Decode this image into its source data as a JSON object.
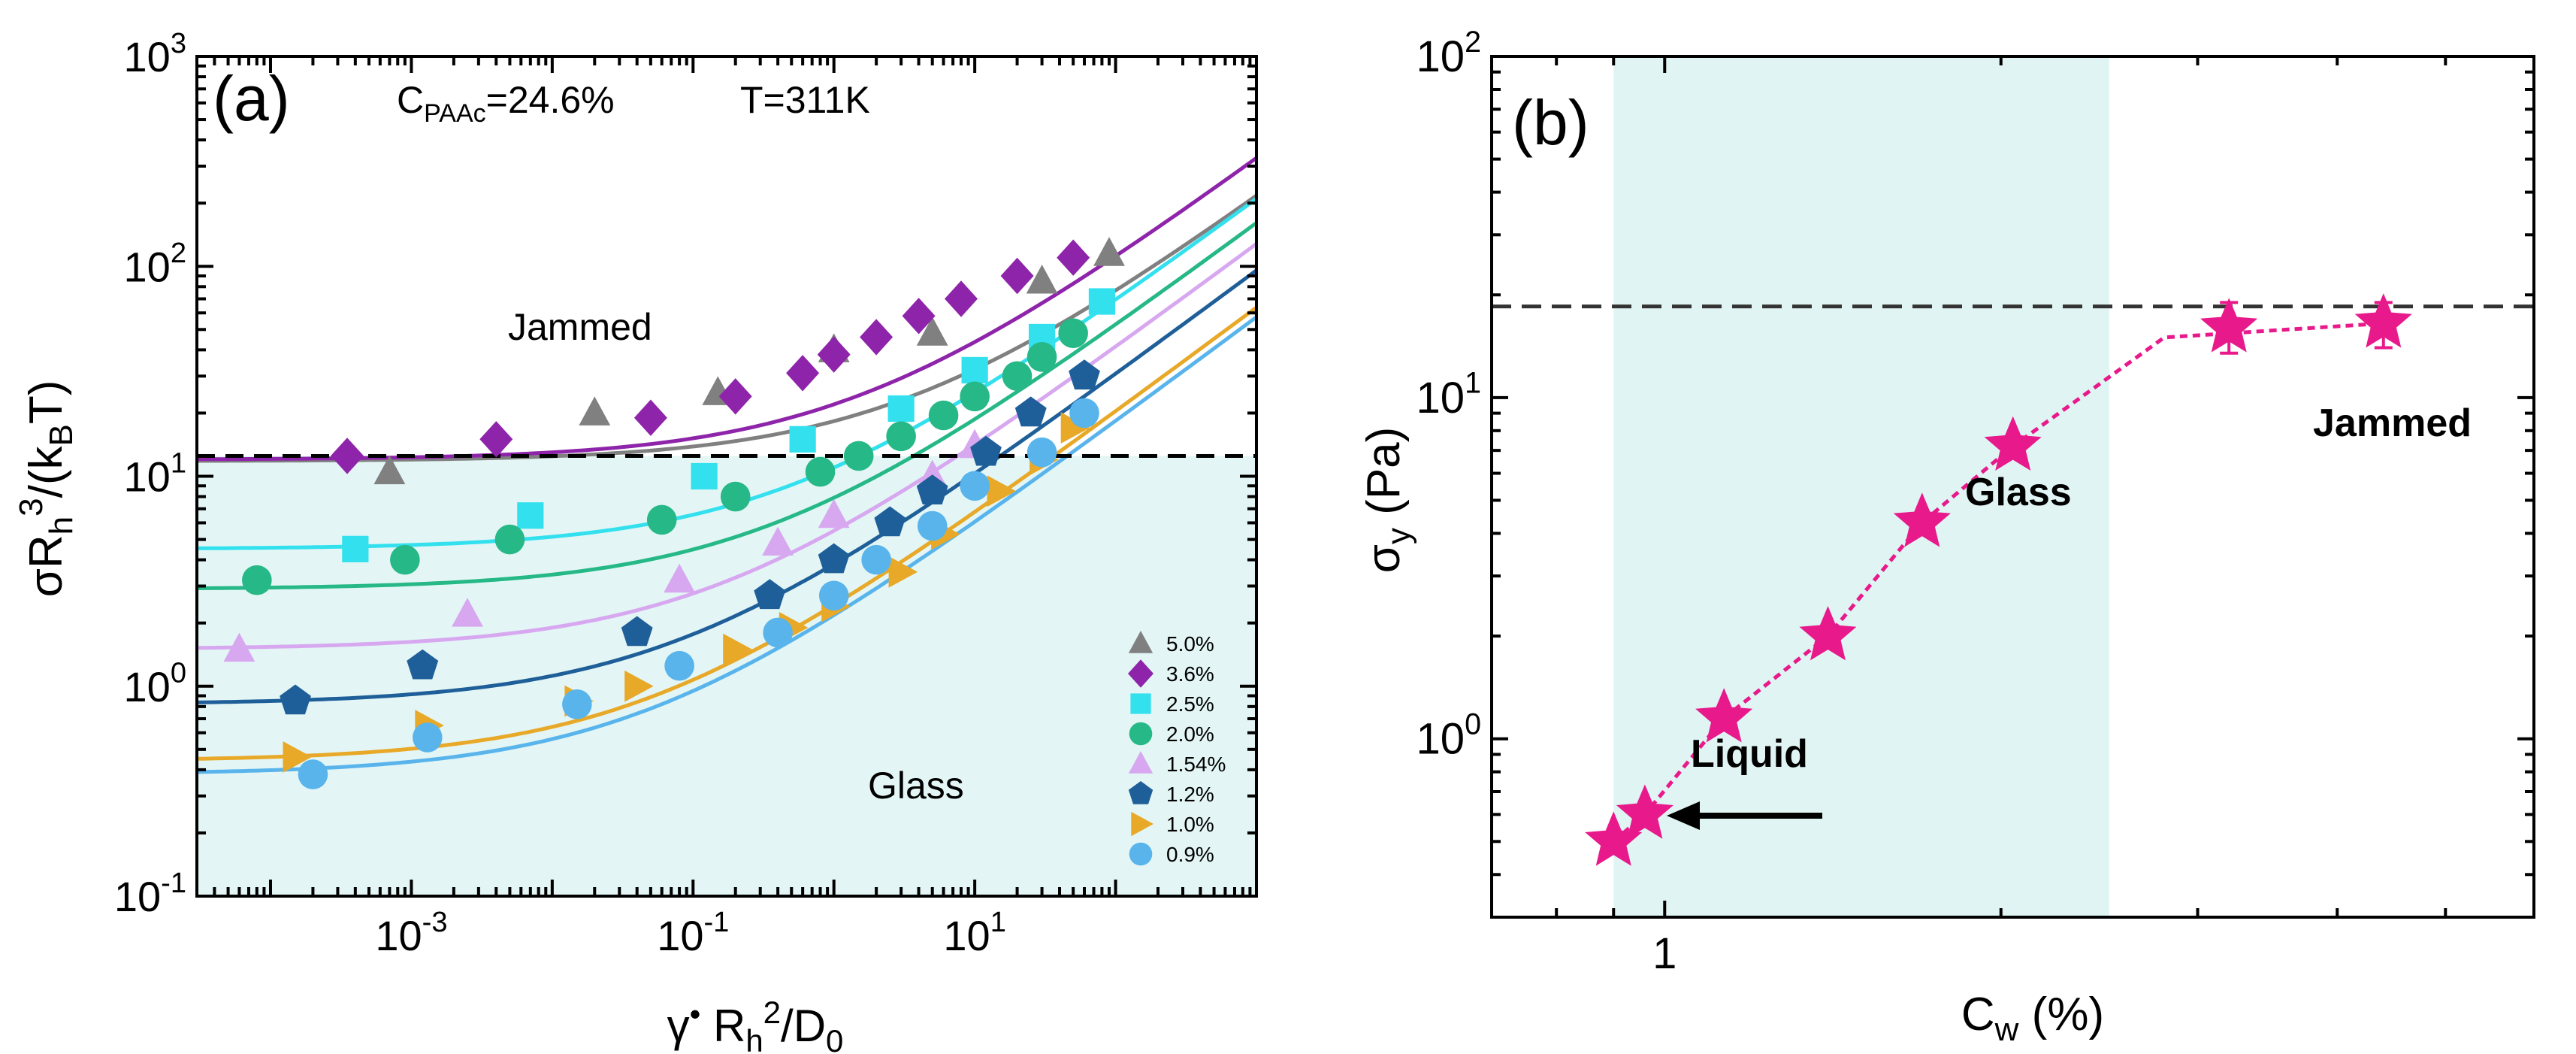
{
  "chart_data": [
    {
      "panel": "(a)",
      "type": "scatter",
      "title": "",
      "annotation_conc": "C",
      "annotation_conc_sub": "PAAc",
      "annotation_conc_val": "=24.6%",
      "annotation_temp": "T=311K",
      "region_labels": {
        "upper": "Jammed",
        "lower": "Glass"
      },
      "xlabel": {
        "base": "γ",
        "sup1": "•",
        "mid": " R",
        "sub1": "h",
        "sup2": "2",
        "tail": "/D",
        "sub2": "0"
      },
      "ylabel": {
        "base": "σR",
        "sub": "h",
        "sup": "3",
        "tail1": "/(k",
        "sub2": "B",
        "tail2": "T)"
      },
      "xscale": "log",
      "yscale": "log",
      "xlim": [
        3e-05,
        1000
      ],
      "ylim": [
        0.1,
        1000
      ],
      "x_ticks": [
        {
          "v": 0.001,
          "b": "10",
          "e": "-3"
        },
        {
          "v": 0.1,
          "b": "10",
          "e": "-1"
        },
        {
          "v": 10,
          "b": "10",
          "e": "1"
        }
      ],
      "y_ticks": [
        {
          "v": 0.1,
          "b": "10",
          "e": "-1"
        },
        {
          "v": 1,
          "b": "10",
          "e": "0"
        },
        {
          "v": 10,
          "b": "10",
          "e": "1"
        },
        {
          "v": 100,
          "b": "10",
          "e": "2"
        },
        {
          "v": 1000,
          "b": "10",
          "e": "3"
        }
      ],
      "glass_boundary_y": 12.5,
      "glass_region_color": "#e3f6f5",
      "legend_placement": "bottom-right",
      "series": [
        {
          "name": "5.0%",
          "marker": "triangle",
          "color": "#808080",
          "points": [
            [
              0.0007,
              10.5
            ],
            [
              0.02,
              20
            ],
            [
              0.15,
              25
            ],
            [
              1.0,
              40
            ],
            [
              5,
              48
            ],
            [
              30,
              85
            ],
            [
              90,
              115
            ]
          ],
          "fit": {
            "sigma0": 11.8,
            "a": 6.5,
            "n": 0.5
          }
        },
        {
          "name": "3.6%",
          "marker": "diamond",
          "color": "#8e24aa",
          "points": [
            [
              0.00035,
              12.5
            ],
            [
              0.004,
              15
            ],
            [
              0.05,
              19
            ],
            [
              0.2,
              24
            ],
            [
              0.6,
              31
            ],
            [
              1.0,
              38
            ],
            [
              2.0,
              46
            ],
            [
              4,
              58
            ],
            [
              8,
              70
            ],
            [
              20,
              90
            ],
            [
              50,
              110
            ]
          ],
          "fit": {
            "sigma0": 12,
            "a": 10,
            "n": 0.5
          }
        },
        {
          "name": "2.5%",
          "marker": "square",
          "color": "#33e0ee",
          "points": [
            [
              0.0004,
              4.5
            ],
            [
              0.007,
              6.5
            ],
            [
              0.12,
              10
            ],
            [
              0.6,
              15
            ],
            [
              3,
              21
            ],
            [
              10,
              32
            ],
            [
              30,
              46
            ],
            [
              80,
              68
            ]
          ],
          "fit": {
            "sigma0": 4.5,
            "a": 6.5,
            "n": 0.5
          }
        },
        {
          "name": "2.0%",
          "marker": "circle",
          "color": "#26b886",
          "points": [
            [
              8e-05,
              3.2
            ],
            [
              0.0009,
              4.0
            ],
            [
              0.005,
              5.0
            ],
            [
              0.06,
              6.2
            ],
            [
              0.2,
              8.0
            ],
            [
              0.8,
              10.5
            ],
            [
              1.5,
              12.5
            ],
            [
              3,
              15.5
            ],
            [
              6,
              19.5
            ],
            [
              10,
              24
            ],
            [
              20,
              30
            ],
            [
              30,
              37
            ],
            [
              50,
              48
            ]
          ],
          "fit": {
            "sigma0": 2.9,
            "a": 5.0,
            "n": 0.5
          }
        },
        {
          "name": "1.54%",
          "marker": "triangle",
          "color": "#d7a8f0",
          "points": [
            [
              6e-05,
              1.5
            ],
            [
              0.0025,
              2.2
            ],
            [
              0.08,
              3.2
            ],
            [
              0.4,
              4.8
            ],
            [
              1.0,
              6.5
            ],
            [
              5,
              10
            ],
            [
              10,
              14
            ]
          ],
          "fit": {
            "sigma0": 1.5,
            "a": 4.0,
            "n": 0.5
          }
        },
        {
          "name": "1.2%",
          "marker": "pentagon",
          "color": "#1f5f99",
          "points": [
            [
              0.00015,
              0.85
            ],
            [
              0.0012,
              1.25
            ],
            [
              0.04,
              1.8
            ],
            [
              0.35,
              2.7
            ],
            [
              1.0,
              4.0
            ],
            [
              2.5,
              6.0
            ],
            [
              5,
              8.5
            ],
            [
              12,
              13
            ],
            [
              25,
              20
            ],
            [
              60,
              30
            ]
          ],
          "fit": {
            "sigma0": 0.82,
            "a": 3.0,
            "n": 0.5
          }
        },
        {
          "name": "1.0%",
          "marker": "triangle-right",
          "color": "#e8a828",
          "points": [
            [
              0.00015,
              0.46
            ],
            [
              0.0013,
              0.65
            ],
            [
              0.015,
              0.85
            ],
            [
              0.04,
              1.0
            ],
            [
              0.2,
              1.5
            ],
            [
              0.5,
              1.9
            ],
            [
              1.0,
              2.4
            ],
            [
              3,
              3.5
            ],
            [
              6,
              5.3
            ],
            [
              15,
              8.5
            ],
            [
              30,
              12
            ],
            [
              50,
              17
            ]
          ],
          "fit": {
            "sigma0": 0.44,
            "a": 2.0,
            "n": 0.5
          }
        },
        {
          "name": "0.9%",
          "marker": "circle",
          "color": "#5ab4ec",
          "points": [
            [
              0.0002,
              0.38
            ],
            [
              0.0013,
              0.57
            ],
            [
              0.015,
              0.82
            ],
            [
              0.08,
              1.25
            ],
            [
              0.4,
              1.8
            ],
            [
              1.0,
              2.7
            ],
            [
              2,
              4.0
            ],
            [
              5,
              5.8
            ],
            [
              10,
              9.0
            ],
            [
              30,
              13
            ],
            [
              60,
              20
            ]
          ],
          "fit": {
            "sigma0": 0.38,
            "a": 1.8,
            "n": 0.5
          }
        }
      ]
    },
    {
      "panel": "(b)",
      "type": "scatter",
      "title": "",
      "xlabel": {
        "base": "C",
        "sub": "w",
        "tail": " (%)"
      },
      "ylabel": {
        "base": "σ",
        "sub": "y",
        "tail": " (Pa)"
      },
      "xscale": "log",
      "yscale": "log",
      "xlim": [
        0.7,
        6
      ],
      "ylim": [
        0.3,
        100
      ],
      "x_ticks": [
        {
          "v": 1,
          "b": "1",
          "e": ""
        }
      ],
      "y_ticks": [
        {
          "v": 1,
          "b": "10",
          "e": "0"
        },
        {
          "v": 10,
          "b": "10",
          "e": "1"
        },
        {
          "v": 100,
          "b": "10",
          "e": "2"
        }
      ],
      "glass_region_x": [
        0.9,
        2.5
      ],
      "glass_region_color": "#e0f5f3",
      "dashed_line_y": 18.5,
      "region_labels": {
        "glass": "Glass",
        "jammed": "Jammed",
        "liquid": "Liquid"
      },
      "marker": "star",
      "color": "#e8198b",
      "points": [
        [
          0.9,
          0.5
        ],
        [
          0.96,
          0.6
        ],
        [
          1.13,
          1.15
        ],
        [
          1.4,
          2.0
        ],
        [
          1.7,
          4.3
        ],
        [
          2.05,
          7.2
        ],
        [
          3.2,
          16
        ],
        [
          4.4,
          16.5
        ]
      ],
      "error_bars": [
        [
          3.2,
          13.5,
          19
        ],
        [
          4.4,
          14,
          19
        ]
      ],
      "fit_line": [
        [
          0.9,
          0.5
        ],
        [
          0.96,
          0.6
        ],
        [
          1.13,
          1.15
        ],
        [
          1.4,
          2.0
        ],
        [
          1.7,
          4.3
        ],
        [
          2.05,
          7.2
        ],
        [
          2.8,
          15
        ],
        [
          4.4,
          16.5
        ]
      ]
    }
  ]
}
